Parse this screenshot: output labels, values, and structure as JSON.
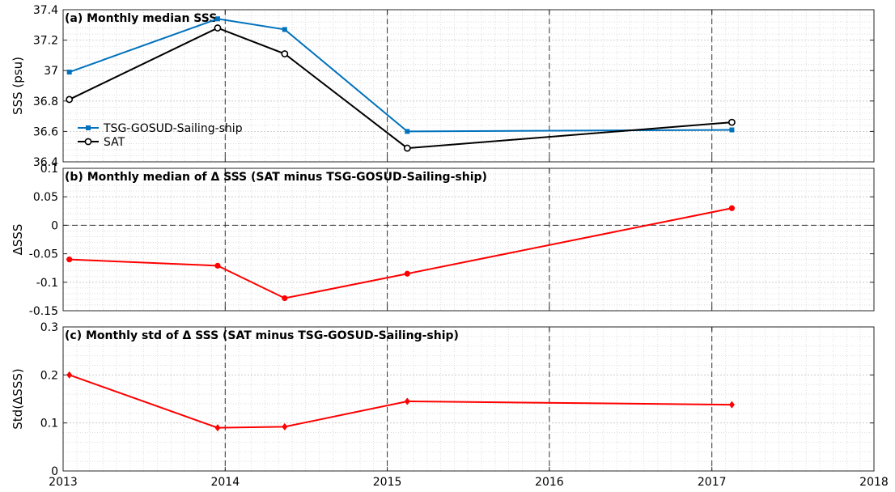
{
  "chart_data": [
    {
      "type": "line",
      "title": "(a) Monthly median SSS",
      "ylabel": "SSS (psu)",
      "x_axis": "date",
      "xlim": [
        "2013-01-01",
        "2018-01-01"
      ],
      "ylim": [
        36.4,
        37.4
      ],
      "yticks": [
        36.4,
        36.6,
        36.8,
        37,
        37.2,
        37.4
      ],
      "ytick_labels": [
        "36.4",
        "36.6",
        "36.8",
        "37",
        "37.2",
        "37.4"
      ],
      "grid": "on",
      "legend_placement": "lower-left",
      "series": [
        {
          "name": "TSG-GOSUD-Sailing-ship",
          "color": "#0072BD",
          "marker": "filled-square",
          "x": [
            "2013-01-15",
            "2013-12-15",
            "2014-05-15",
            "2015-02-15",
            "2017-02-15"
          ],
          "values": [
            36.99,
            37.34,
            37.27,
            36.6,
            36.61
          ]
        },
        {
          "name": "SAT",
          "color": "#000000",
          "marker": "open-circle",
          "x": [
            "2013-01-15",
            "2013-12-15",
            "2014-05-15",
            "2015-02-15",
            "2017-02-15"
          ],
          "values": [
            36.81,
            37.28,
            37.11,
            36.49,
            36.66
          ]
        }
      ],
      "vlines": [
        "2014-01-01",
        "2015-01-01",
        "2016-01-01",
        "2017-01-01"
      ]
    },
    {
      "type": "line",
      "title": "(b) Monthly median of Δ SSS (SAT minus TSG-GOSUD-Sailing-ship)",
      "ylabel": "ΔSSS",
      "x_axis": "date",
      "xlim": [
        "2013-01-01",
        "2018-01-01"
      ],
      "ylim": [
        -0.15,
        0.1
      ],
      "yticks": [
        -0.15,
        -0.1,
        -0.05,
        0,
        0.05,
        0.1
      ],
      "ytick_labels": [
        "-0.15",
        "-0.1",
        "-0.05",
        "0",
        "0.05",
        "0.1"
      ],
      "grid": "on",
      "hlines": [
        0
      ],
      "series": [
        {
          "color": "#FF0000",
          "marker": "filled-circle",
          "x": [
            "2013-01-15",
            "2013-12-15",
            "2014-05-15",
            "2015-02-15",
            "2017-02-15"
          ],
          "values": [
            -0.06,
            -0.071,
            -0.128,
            -0.085,
            0.03
          ]
        }
      ],
      "vlines": [
        "2014-01-01",
        "2015-01-01",
        "2016-01-01",
        "2017-01-01"
      ]
    },
    {
      "type": "line",
      "title": "(c) Monthly std of Δ SSS (SAT minus TSG-GOSUD-Sailing-ship)",
      "ylabel": "Std(ΔSSS)",
      "x_axis": "date",
      "xlim": [
        "2013-01-01",
        "2018-01-01"
      ],
      "ylim": [
        0,
        0.3
      ],
      "yticks": [
        0,
        0.1,
        0.2,
        0.3
      ],
      "ytick_labels": [
        "0",
        "0.1",
        "0.2",
        "0.3"
      ],
      "xticks": [
        "2013-01-01",
        "2014-01-01",
        "2015-01-01",
        "2016-01-01",
        "2017-01-01",
        "2018-01-01"
      ],
      "xtick_labels": [
        "2013",
        "2014",
        "2015",
        "2016",
        "2017",
        "2018"
      ],
      "grid": "on",
      "series": [
        {
          "color": "#FF0000",
          "marker": "filled-diamond",
          "x": [
            "2013-01-15",
            "2013-12-15",
            "2014-05-15",
            "2015-02-15",
            "2017-02-15"
          ],
          "values": [
            0.2,
            0.09,
            0.092,
            0.145,
            0.138
          ]
        }
      ],
      "vlines": [
        "2014-01-01",
        "2015-01-01",
        "2016-01-01",
        "2017-01-01"
      ]
    }
  ]
}
